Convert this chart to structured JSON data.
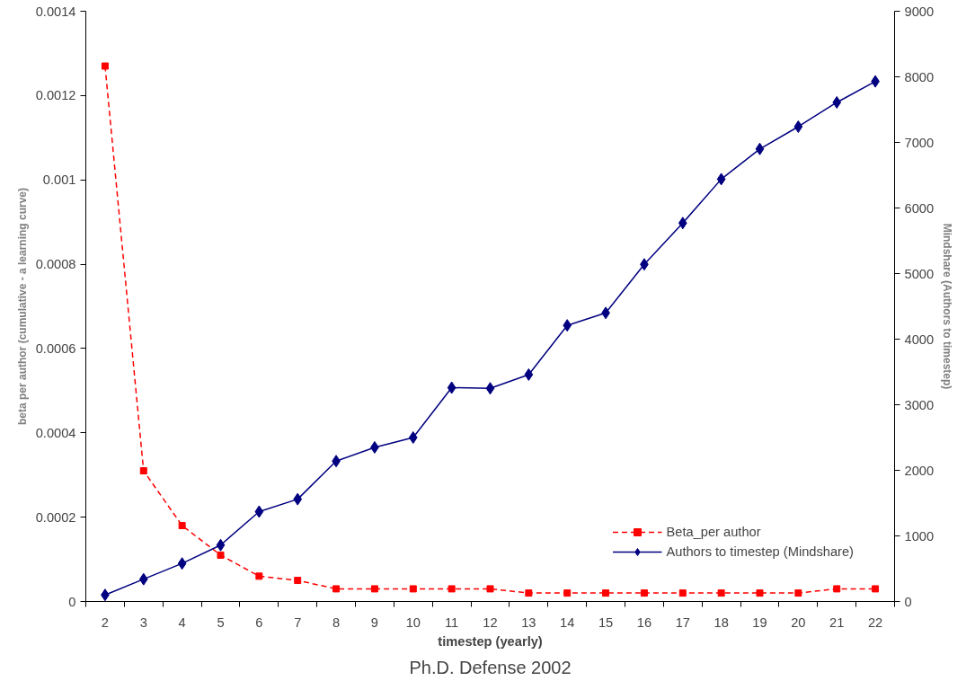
{
  "chart_data": {
    "type": "line",
    "xlabel": "timestep (yearly)",
    "ylabel": "beta per author (cumulative - a learning curve)",
    "y2label": "Mindshare (Authors to timestep)",
    "annotations": [
      "Ph.D. Defense 2002"
    ],
    "categories": [
      "2",
      "3",
      "4",
      "5",
      "6",
      "7",
      "8",
      "9",
      "10",
      "11",
      "12",
      "13",
      "14",
      "15",
      "16",
      "17",
      "18",
      "19",
      "20",
      "21",
      "22"
    ],
    "ylim": [
      0,
      0.0014
    ],
    "yticks": [
      0,
      0.0002,
      0.0004,
      0.0006,
      0.0008,
      0.001,
      0.0012,
      0.0014
    ],
    "y2lim": [
      0,
      9000
    ],
    "y2ticks": [
      0,
      1000,
      2000,
      3000,
      4000,
      5000,
      6000,
      7000,
      8000,
      9000
    ],
    "grid": false,
    "legend": "bottom right",
    "series": [
      {
        "name": "Beta_per author",
        "color": "#ff0000",
        "marker": "square",
        "line_style": "dashed",
        "values": [
          0.00127,
          0.00031,
          0.00018,
          0.00011,
          6e-05,
          5e-05,
          3e-05,
          3e-05,
          3e-05,
          3e-05,
          3e-05,
          2e-05,
          2e-05,
          2e-05,
          2e-05,
          2e-05,
          2e-05,
          2e-05,
          2e-05,
          3e-05,
          3e-05
        ]
      },
      {
        "name": "Authors to timestep (Mindshare)",
        "color": "#000080",
        "marker": "diamond",
        "line_style": "solid",
        "axis": "y2",
        "values": [
          100,
          340,
          580,
          860,
          1370,
          1560,
          2140,
          2350,
          2500,
          3260,
          3250,
          3460,
          4210,
          4400,
          5140,
          5770,
          6440,
          6900,
          7240,
          7610,
          7930
        ]
      }
    ]
  }
}
